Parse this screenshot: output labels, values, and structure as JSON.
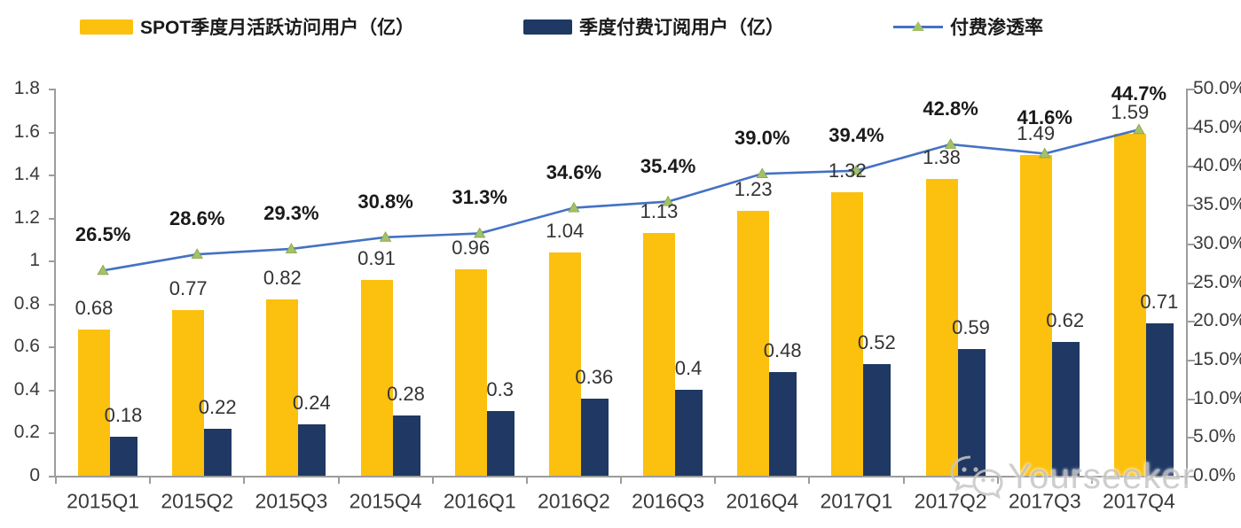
{
  "colors": {
    "mau_bar": "#FCC00E",
    "paid_bar": "#1F3864",
    "line": "#4472C4",
    "marker_fill": "#A4C16A",
    "marker_stroke": "#84A447",
    "axis": "#9C9C9C"
  },
  "watermark": {
    "icon": "wechat-icon",
    "text": "Yourseeker"
  },
  "chart_data": {
    "type": "bar",
    "subtype": "grouped-bars-with-line",
    "title": "",
    "legend_position": "top",
    "grid": false,
    "categories": [
      "2015Q1",
      "2015Q2",
      "2015Q3",
      "2015Q4",
      "2016Q1",
      "2016Q2",
      "2016Q3",
      "2016Q4",
      "2017Q1",
      "2017Q2",
      "2017Q3",
      "2017Q4"
    ],
    "series": [
      {
        "name": "SPOT季度月活跃访问用户（亿）",
        "type": "bar",
        "axis": "left",
        "color_key": "mau_bar",
        "values": [
          0.68,
          0.77,
          0.82,
          0.91,
          0.96,
          1.04,
          1.13,
          1.23,
          1.32,
          1.38,
          1.49,
          1.59
        ],
        "labels": [
          "0.68",
          "0.77",
          "0.82",
          "0.91",
          "0.96",
          "1.04",
          "1.13",
          "1.23",
          "1.32",
          "1.38",
          "1.49",
          "1.59"
        ]
      },
      {
        "name": "季度付费订阅用户（亿）",
        "type": "bar",
        "axis": "left",
        "color_key": "paid_bar",
        "values": [
          0.18,
          0.22,
          0.24,
          0.28,
          0.3,
          0.36,
          0.4,
          0.48,
          0.52,
          0.59,
          0.62,
          0.71
        ],
        "labels": [
          "0.18",
          "0.22",
          "0.24",
          "0.28",
          "0.3",
          "0.36",
          "0.4",
          "0.48",
          "0.52",
          "0.59",
          "0.62",
          "0.71"
        ]
      },
      {
        "name": "付费渗透率",
        "type": "line",
        "axis": "right",
        "color_key": "line",
        "values": [
          26.5,
          28.6,
          29.3,
          30.8,
          31.3,
          34.6,
          35.4,
          39.0,
          39.4,
          42.8,
          41.6,
          44.7
        ],
        "labels": [
          "26.5%",
          "28.6%",
          "29.3%",
          "30.8%",
          "31.3%",
          "34.6%",
          "35.4%",
          "39.0%",
          "39.4%",
          "42.8%",
          "41.6%",
          "44.7%"
        ]
      }
    ],
    "left_axis": {
      "min": 0,
      "max": 1.8,
      "ticks": [
        "1.8",
        "1.6",
        "1.4",
        "1.2",
        "1",
        "0.8",
        "0.6",
        "0.4",
        "0.2",
        "0"
      ]
    },
    "right_axis": {
      "min": 0,
      "max": 50,
      "ticks": [
        "50.0%",
        "45.0%",
        "40.0%",
        "35.0%",
        "30.0%",
        "25.0%",
        "20.0%",
        "15.0%",
        "10.0%",
        "5.0%",
        "0.0%"
      ]
    }
  }
}
